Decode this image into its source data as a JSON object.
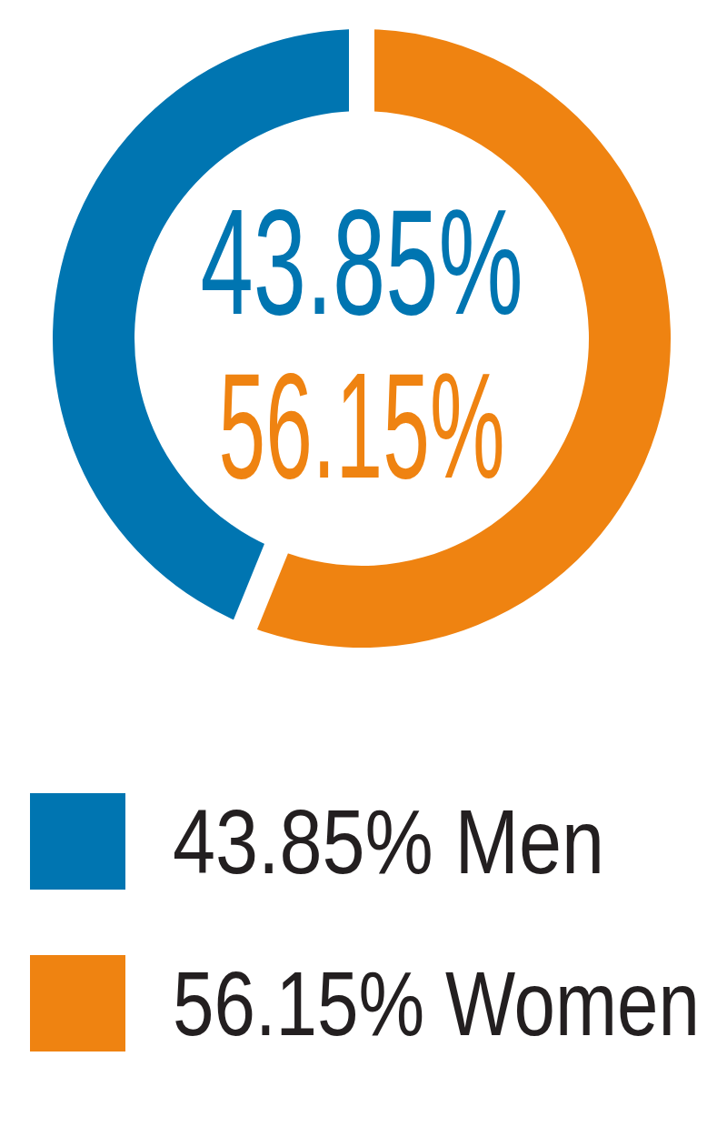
{
  "chart_data": {
    "type": "pie",
    "donut": true,
    "categories": [
      "Men",
      "Women"
    ],
    "values": [
      43.85,
      56.15
    ],
    "value_labels": [
      "43.85%",
      "56.15%"
    ],
    "colors": [
      "#0075b1",
      "#ef8311"
    ],
    "data_labels": true,
    "legend": "bottom"
  }
}
